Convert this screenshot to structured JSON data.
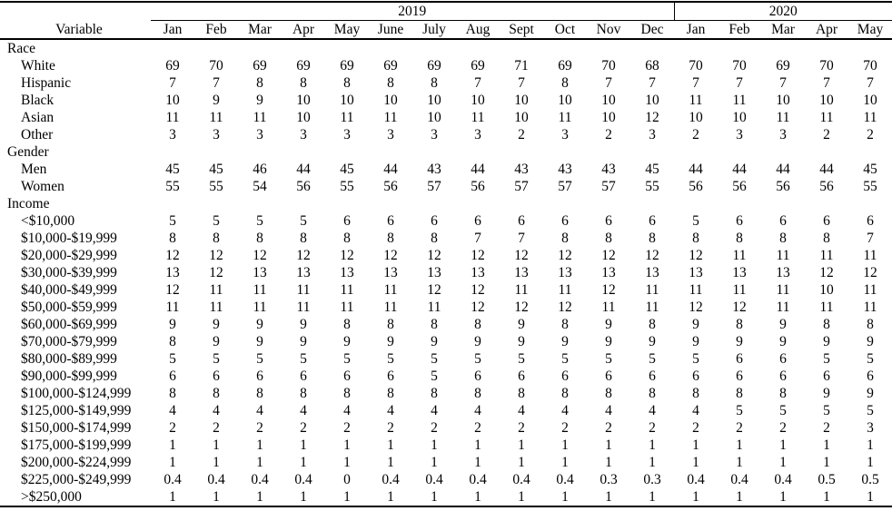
{
  "table": {
    "variable_header": "Variable",
    "year_groups": [
      {
        "label": "2019",
        "span": 12
      },
      {
        "label": "2020",
        "span": 5
      }
    ],
    "months": [
      "Jan",
      "Feb",
      "Mar",
      "Apr",
      "May",
      "June",
      "July",
      "Aug",
      "Sept",
      "Oct",
      "Nov",
      "Dec",
      "Jan",
      "Feb",
      "Mar",
      "Apr",
      "May"
    ],
    "rows": [
      {
        "label": "Race",
        "section": true,
        "values": []
      },
      {
        "label": "White",
        "section": false,
        "values": [
          69,
          70,
          69,
          69,
          69,
          69,
          69,
          69,
          71,
          69,
          70,
          68,
          70,
          70,
          69,
          70,
          70
        ]
      },
      {
        "label": "Hispanic",
        "section": false,
        "values": [
          7,
          7,
          8,
          8,
          8,
          8,
          8,
          7,
          7,
          8,
          7,
          7,
          7,
          7,
          7,
          7,
          7
        ]
      },
      {
        "label": "Black",
        "section": false,
        "values": [
          10,
          9,
          9,
          10,
          10,
          10,
          10,
          10,
          10,
          10,
          10,
          10,
          11,
          11,
          10,
          10,
          10
        ]
      },
      {
        "label": "Asian",
        "section": false,
        "values": [
          11,
          11,
          11,
          10,
          11,
          11,
          10,
          11,
          10,
          11,
          10,
          12,
          10,
          10,
          11,
          11,
          11
        ]
      },
      {
        "label": "Other",
        "section": false,
        "values": [
          3,
          3,
          3,
          3,
          3,
          3,
          3,
          3,
          2,
          3,
          2,
          3,
          2,
          3,
          3,
          2,
          2
        ]
      },
      {
        "label": "Gender",
        "section": true,
        "values": []
      },
      {
        "label": "Men",
        "section": false,
        "values": [
          45,
          45,
          46,
          44,
          45,
          44,
          43,
          44,
          43,
          43,
          43,
          45,
          44,
          44,
          44,
          44,
          45
        ]
      },
      {
        "label": "Women",
        "section": false,
        "values": [
          55,
          55,
          54,
          56,
          55,
          56,
          57,
          56,
          57,
          57,
          57,
          55,
          56,
          56,
          56,
          56,
          55
        ]
      },
      {
        "label": "Income",
        "section": true,
        "values": []
      },
      {
        "label": "<$10,000",
        "section": false,
        "values": [
          5,
          5,
          5,
          5,
          6,
          6,
          6,
          6,
          6,
          6,
          6,
          6,
          5,
          6,
          6,
          6,
          6
        ]
      },
      {
        "label": "$10,000-$19,999",
        "section": false,
        "values": [
          8,
          8,
          8,
          8,
          8,
          8,
          8,
          7,
          7,
          8,
          8,
          8,
          8,
          8,
          8,
          8,
          7
        ]
      },
      {
        "label": "$20,000-$29,999",
        "section": false,
        "values": [
          12,
          12,
          12,
          12,
          12,
          12,
          12,
          12,
          12,
          12,
          12,
          12,
          12,
          11,
          11,
          11,
          11
        ]
      },
      {
        "label": "$30,000-$39,999",
        "section": false,
        "values": [
          13,
          12,
          13,
          13,
          13,
          13,
          13,
          13,
          13,
          13,
          13,
          13,
          13,
          13,
          13,
          12,
          12
        ]
      },
      {
        "label": "$40,000-$49,999",
        "section": false,
        "values": [
          12,
          11,
          11,
          11,
          11,
          11,
          12,
          12,
          11,
          11,
          12,
          11,
          11,
          11,
          11,
          10,
          11
        ]
      },
      {
        "label": "$50,000-$59,999",
        "section": false,
        "values": [
          11,
          11,
          11,
          11,
          11,
          11,
          11,
          12,
          12,
          12,
          11,
          11,
          12,
          12,
          11,
          11,
          11
        ]
      },
      {
        "label": "$60,000-$69,999",
        "section": false,
        "values": [
          9,
          9,
          9,
          9,
          8,
          8,
          8,
          8,
          9,
          8,
          9,
          8,
          9,
          8,
          9,
          8,
          8
        ]
      },
      {
        "label": "$70,000-$79,999",
        "section": false,
        "values": [
          8,
          9,
          9,
          9,
          9,
          9,
          9,
          9,
          9,
          9,
          9,
          9,
          9,
          9,
          9,
          9,
          9
        ]
      },
      {
        "label": "$80,000-$89,999",
        "section": false,
        "values": [
          5,
          5,
          5,
          5,
          5,
          5,
          5,
          5,
          5,
          5,
          5,
          5,
          5,
          6,
          6,
          5,
          5
        ]
      },
      {
        "label": "$90,000-$99,999",
        "section": false,
        "values": [
          6,
          6,
          6,
          6,
          6,
          6,
          5,
          6,
          6,
          6,
          6,
          6,
          6,
          6,
          6,
          6,
          6
        ]
      },
      {
        "label": "$100,000-$124,999",
        "section": false,
        "values": [
          8,
          8,
          8,
          8,
          8,
          8,
          8,
          8,
          8,
          8,
          8,
          8,
          8,
          8,
          8,
          9,
          9
        ]
      },
      {
        "label": "$125,000-$149,999",
        "section": false,
        "values": [
          4,
          4,
          4,
          4,
          4,
          4,
          4,
          4,
          4,
          4,
          4,
          4,
          4,
          5,
          5,
          5,
          5
        ]
      },
      {
        "label": "$150,000-$174,999",
        "section": false,
        "values": [
          2,
          2,
          2,
          2,
          2,
          2,
          2,
          2,
          2,
          2,
          2,
          2,
          2,
          2,
          2,
          2,
          3
        ]
      },
      {
        "label": "$175,000-$199,999",
        "section": false,
        "values": [
          1,
          1,
          1,
          1,
          1,
          1,
          1,
          1,
          1,
          1,
          1,
          1,
          1,
          1,
          1,
          1,
          1
        ]
      },
      {
        "label": "$200,000-$224,999",
        "section": false,
        "values": [
          1,
          1,
          1,
          1,
          1,
          1,
          1,
          1,
          1,
          1,
          1,
          1,
          1,
          1,
          1,
          1,
          1
        ]
      },
      {
        "label": "$225,000-$249,999",
        "section": false,
        "values": [
          0.4,
          0.4,
          0.4,
          0.4,
          0,
          0.4,
          0.4,
          0.4,
          0.4,
          0.4,
          0.3,
          0.3,
          0.4,
          0.4,
          0.4,
          0.5,
          0.5
        ]
      },
      {
        "label": ">$250,000",
        "section": false,
        "values": [
          1,
          1,
          1,
          1,
          1,
          1,
          1,
          1,
          1,
          1,
          1,
          1,
          1,
          1,
          1,
          1,
          1
        ]
      }
    ]
  }
}
